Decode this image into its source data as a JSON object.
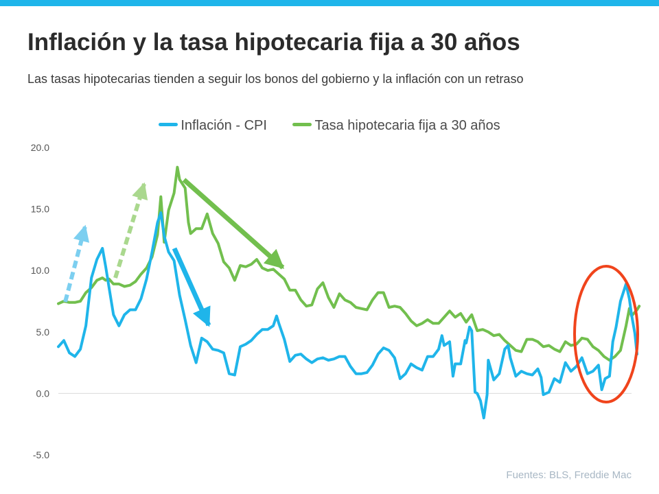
{
  "title": "Inflación y la tasa hipotecaria fija a 30 años",
  "subtitle": "Las tasas hipotecarias tienden a seguir los bonos del gobierno y la inflación con un retraso",
  "source": "Fuentes:  BLS, Freddie Mac",
  "colors": {
    "accent_bar": "#1fb5ea",
    "cpi": "#1fb5ea",
    "mortgage": "#72bf4e",
    "highlight_circle": "#f0441c"
  },
  "chart_data": {
    "type": "line",
    "ylim": [
      -5,
      20
    ],
    "yticks": [
      "20.0",
      "15.0",
      "10.0",
      "5.0",
      "0.0",
      "-5.0"
    ],
    "x_range": [
      1971,
      2023
    ],
    "grid": "zero-line only",
    "legend": "top-center",
    "series": [
      {
        "name": "Inflación - CPI",
        "color": "#1fb5ea",
        "points": [
          [
            1971.0,
            3.8
          ],
          [
            1971.5,
            4.3
          ],
          [
            1972.0,
            3.3
          ],
          [
            1972.5,
            3.0
          ],
          [
            1973.0,
            3.6
          ],
          [
            1973.5,
            5.5
          ],
          [
            1974.0,
            9.4
          ],
          [
            1974.5,
            10.9
          ],
          [
            1975.0,
            11.8
          ],
          [
            1975.3,
            10.3
          ],
          [
            1975.6,
            8.6
          ],
          [
            1976.0,
            6.4
          ],
          [
            1976.5,
            5.5
          ],
          [
            1977.0,
            6.4
          ],
          [
            1977.5,
            6.8
          ],
          [
            1978.0,
            6.8
          ],
          [
            1978.5,
            7.7
          ],
          [
            1979.0,
            9.3
          ],
          [
            1979.5,
            11.5
          ],
          [
            1980.0,
            13.9
          ],
          [
            1980.3,
            14.7
          ],
          [
            1980.6,
            12.8
          ],
          [
            1981.0,
            11.5
          ],
          [
            1981.5,
            10.8
          ],
          [
            1982.0,
            8.0
          ],
          [
            1982.5,
            6.0
          ],
          [
            1983.0,
            3.9
          ],
          [
            1983.5,
            2.5
          ],
          [
            1984.0,
            4.5
          ],
          [
            1984.5,
            4.2
          ],
          [
            1985.0,
            3.6
          ],
          [
            1985.5,
            3.5
          ],
          [
            1986.0,
            3.3
          ],
          [
            1986.5,
            1.6
          ],
          [
            1987.0,
            1.5
          ],
          [
            1987.5,
            3.8
          ],
          [
            1988.0,
            4.0
          ],
          [
            1988.5,
            4.3
          ],
          [
            1989.0,
            4.8
          ],
          [
            1989.5,
            5.2
          ],
          [
            1990.0,
            5.2
          ],
          [
            1990.5,
            5.5
          ],
          [
            1990.8,
            6.3
          ],
          [
            1991.0,
            5.7
          ],
          [
            1991.5,
            4.4
          ],
          [
            1992.0,
            2.6
          ],
          [
            1992.5,
            3.1
          ],
          [
            1993.0,
            3.2
          ],
          [
            1993.5,
            2.8
          ],
          [
            1994.0,
            2.5
          ],
          [
            1994.5,
            2.8
          ],
          [
            1995.0,
            2.9
          ],
          [
            1995.5,
            2.7
          ],
          [
            1996.0,
            2.8
          ],
          [
            1996.5,
            3.0
          ],
          [
            1997.0,
            3.0
          ],
          [
            1997.5,
            2.2
          ],
          [
            1998.0,
            1.6
          ],
          [
            1998.5,
            1.6
          ],
          [
            1999.0,
            1.7
          ],
          [
            1999.5,
            2.3
          ],
          [
            2000.0,
            3.2
          ],
          [
            2000.5,
            3.7
          ],
          [
            2001.0,
            3.5
          ],
          [
            2001.5,
            2.9
          ],
          [
            2002.0,
            1.2
          ],
          [
            2002.5,
            1.6
          ],
          [
            2003.0,
            2.4
          ],
          [
            2003.5,
            2.1
          ],
          [
            2004.0,
            1.9
          ],
          [
            2004.5,
            3.0
          ],
          [
            2005.0,
            3.0
          ],
          [
            2005.5,
            3.6
          ],
          [
            2005.8,
            4.7
          ],
          [
            2006.0,
            3.9
          ],
          [
            2006.5,
            4.2
          ],
          [
            2006.8,
            1.4
          ],
          [
            2007.0,
            2.4
          ],
          [
            2007.5,
            2.4
          ],
          [
            2007.9,
            4.3
          ],
          [
            2008.0,
            4.1
          ],
          [
            2008.3,
            5.4
          ],
          [
            2008.5,
            5.1
          ],
          [
            2008.8,
            0.1
          ],
          [
            2009.0,
            0.0
          ],
          [
            2009.3,
            -0.6
          ],
          [
            2009.6,
            -2.0
          ],
          [
            2009.9,
            -0.1
          ],
          [
            2010.0,
            2.7
          ],
          [
            2010.5,
            1.1
          ],
          [
            2011.0,
            1.6
          ],
          [
            2011.5,
            3.6
          ],
          [
            2011.8,
            3.9
          ],
          [
            2012.0,
            2.9
          ],
          [
            2012.5,
            1.4
          ],
          [
            2013.0,
            1.8
          ],
          [
            2013.5,
            1.6
          ],
          [
            2014.0,
            1.5
          ],
          [
            2014.5,
            2.0
          ],
          [
            2014.8,
            1.3
          ],
          [
            2015.0,
            -0.1
          ],
          [
            2015.5,
            0.1
          ],
          [
            2016.0,
            1.2
          ],
          [
            2016.5,
            0.9
          ],
          [
            2017.0,
            2.5
          ],
          [
            2017.5,
            1.8
          ],
          [
            2018.0,
            2.2
          ],
          [
            2018.5,
            2.9
          ],
          [
            2019.0,
            1.6
          ],
          [
            2019.5,
            1.8
          ],
          [
            2020.0,
            2.3
          ],
          [
            2020.3,
            0.3
          ],
          [
            2020.6,
            1.2
          ],
          [
            2021.0,
            1.4
          ],
          [
            2021.3,
            4.2
          ],
          [
            2021.6,
            5.4
          ],
          [
            2022.0,
            7.5
          ],
          [
            2022.5,
            8.9
          ],
          [
            2022.8,
            7.7
          ],
          [
            2023.0,
            6.4
          ],
          [
            2023.3,
            4.9
          ],
          [
            2023.5,
            3.2
          ]
        ]
      },
      {
        "name": "Tasa hipotecaria fija a 30 años",
        "color": "#72bf4e",
        "points": [
          [
            1971.0,
            7.3
          ],
          [
            1971.5,
            7.5
          ],
          [
            1972.0,
            7.4
          ],
          [
            1972.5,
            7.4
          ],
          [
            1973.0,
            7.5
          ],
          [
            1973.5,
            8.2
          ],
          [
            1974.0,
            8.6
          ],
          [
            1974.5,
            9.2
          ],
          [
            1975.0,
            9.4
          ],
          [
            1975.3,
            9.2
          ],
          [
            1975.6,
            9.3
          ],
          [
            1976.0,
            8.9
          ],
          [
            1976.5,
            8.9
          ],
          [
            1977.0,
            8.7
          ],
          [
            1977.5,
            8.8
          ],
          [
            1978.0,
            9.1
          ],
          [
            1978.5,
            9.7
          ],
          [
            1979.0,
            10.2
          ],
          [
            1979.5,
            11.1
          ],
          [
            1980.0,
            12.9
          ],
          [
            1980.3,
            16.0
          ],
          [
            1980.6,
            12.3
          ],
          [
            1981.0,
            14.9
          ],
          [
            1981.5,
            16.3
          ],
          [
            1981.8,
            18.4
          ],
          [
            1982.0,
            17.4
          ],
          [
            1982.5,
            16.7
          ],
          [
            1982.8,
            13.9
          ],
          [
            1983.0,
            13.0
          ],
          [
            1983.5,
            13.4
          ],
          [
            1984.0,
            13.4
          ],
          [
            1984.5,
            14.6
          ],
          [
            1985.0,
            13.0
          ],
          [
            1985.5,
            12.2
          ],
          [
            1986.0,
            10.7
          ],
          [
            1986.5,
            10.2
          ],
          [
            1987.0,
            9.2
          ],
          [
            1987.5,
            10.4
          ],
          [
            1988.0,
            10.3
          ],
          [
            1988.5,
            10.5
          ],
          [
            1989.0,
            10.9
          ],
          [
            1989.5,
            10.2
          ],
          [
            1990.0,
            10.0
          ],
          [
            1990.5,
            10.1
          ],
          [
            1991.0,
            9.7
          ],
          [
            1991.5,
            9.3
          ],
          [
            1992.0,
            8.4
          ],
          [
            1992.5,
            8.4
          ],
          [
            1993.0,
            7.6
          ],
          [
            1993.5,
            7.1
          ],
          [
            1994.0,
            7.2
          ],
          [
            1994.5,
            8.5
          ],
          [
            1995.0,
            9.0
          ],
          [
            1995.5,
            7.8
          ],
          [
            1996.0,
            7.0
          ],
          [
            1996.5,
            8.1
          ],
          [
            1997.0,
            7.6
          ],
          [
            1997.5,
            7.4
          ],
          [
            1998.0,
            7.0
          ],
          [
            1998.5,
            6.9
          ],
          [
            1999.0,
            6.8
          ],
          [
            1999.5,
            7.6
          ],
          [
            2000.0,
            8.2
          ],
          [
            2000.5,
            8.2
          ],
          [
            2001.0,
            7.0
          ],
          [
            2001.5,
            7.1
          ],
          [
            2002.0,
            7.0
          ],
          [
            2002.5,
            6.5
          ],
          [
            2003.0,
            5.9
          ],
          [
            2003.5,
            5.5
          ],
          [
            2004.0,
            5.7
          ],
          [
            2004.5,
            6.0
          ],
          [
            2005.0,
            5.7
          ],
          [
            2005.5,
            5.7
          ],
          [
            2006.0,
            6.2
          ],
          [
            2006.5,
            6.7
          ],
          [
            2007.0,
            6.2
          ],
          [
            2007.5,
            6.5
          ],
          [
            2008.0,
            5.8
          ],
          [
            2008.5,
            6.4
          ],
          [
            2009.0,
            5.1
          ],
          [
            2009.5,
            5.2
          ],
          [
            2010.0,
            5.0
          ],
          [
            2010.5,
            4.7
          ],
          [
            2011.0,
            4.8
          ],
          [
            2011.5,
            4.3
          ],
          [
            2012.0,
            3.9
          ],
          [
            2012.5,
            3.5
          ],
          [
            2013.0,
            3.4
          ],
          [
            2013.5,
            4.4
          ],
          [
            2014.0,
            4.4
          ],
          [
            2014.5,
            4.2
          ],
          [
            2015.0,
            3.8
          ],
          [
            2015.5,
            3.9
          ],
          [
            2016.0,
            3.6
          ],
          [
            2016.5,
            3.4
          ],
          [
            2017.0,
            4.2
          ],
          [
            2017.5,
            3.9
          ],
          [
            2018.0,
            4.0
          ],
          [
            2018.5,
            4.5
          ],
          [
            2019.0,
            4.4
          ],
          [
            2019.5,
            3.8
          ],
          [
            2020.0,
            3.5
          ],
          [
            2020.5,
            3.0
          ],
          [
            2021.0,
            2.7
          ],
          [
            2021.5,
            3.0
          ],
          [
            2022.0,
            3.5
          ],
          [
            2022.5,
            5.5
          ],
          [
            2022.8,
            6.9
          ],
          [
            2023.0,
            6.3
          ],
          [
            2023.5,
            6.8
          ],
          [
            2023.7,
            7.1
          ]
        ]
      }
    ]
  }
}
